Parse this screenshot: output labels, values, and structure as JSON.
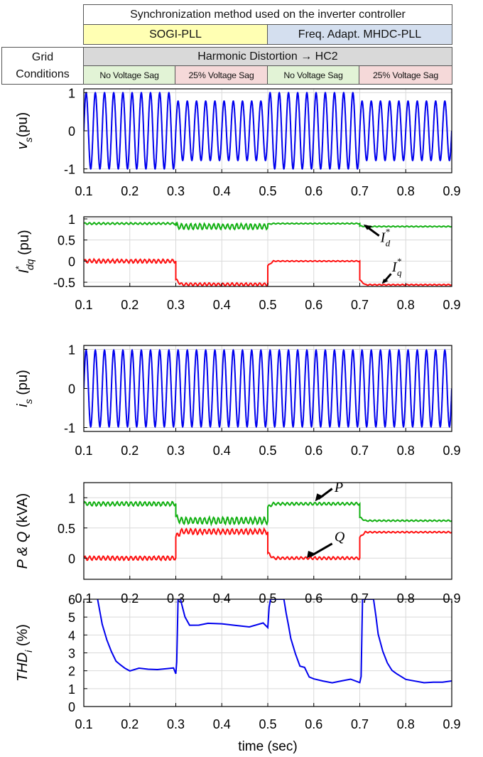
{
  "header": {
    "title": "Synchronization method used on the inverter controller",
    "methods": [
      {
        "label": "SOGI-PLL",
        "color": "#ffffb3"
      },
      {
        "label": "Freq. Adapt. MHDC-PLL",
        "color": "#d4dfef"
      }
    ],
    "grid_label_line1": "Grid",
    "grid_label_line2": "Conditions",
    "distortion_label": "Harmonic Distortion → HC2",
    "distortion_color": "#d9d9d9",
    "conditions": [
      {
        "label": "No Voltage Sag",
        "color": "#e2f3d6"
      },
      {
        "label": "25% Voltage Sag",
        "color": "#f5d9d9"
      },
      {
        "label": "No Voltage Sag",
        "color": "#e2f3d6"
      },
      {
        "label": "25% Voltage Sag",
        "color": "#f5d9d9"
      }
    ]
  },
  "colors": {
    "blue": "#0000ee",
    "green": "#12b012",
    "red": "#ff1010",
    "grid": "#d9d9d9"
  },
  "chart_data": [
    {
      "type": "line",
      "ylabel": "v_s (pu)",
      "xlim": [
        0.1,
        0.9
      ],
      "ylim": [
        -1.1,
        1.1
      ],
      "yticks": [
        "1",
        "0",
        "-1"
      ],
      "ytick_values": [
        1,
        0,
        -1
      ],
      "xticks": [
        "0.1",
        "0.2",
        "0.3",
        "0.4",
        "0.5",
        "0.6",
        "0.7",
        "0.8",
        "0.9"
      ],
      "grid": true,
      "series": [
        {
          "color": "blue",
          "kind": "sine",
          "freq_hz": 50,
          "amplitude_segments": [
            [
              0.1,
              0.3,
              1.0
            ],
            [
              0.3,
              0.5,
              0.78
            ],
            [
              0.5,
              0.7,
              1.0
            ],
            [
              0.7,
              0.9,
              0.78
            ]
          ]
        }
      ]
    },
    {
      "type": "line",
      "ylabel": "I*_dq (pu)",
      "xlim": [
        0.1,
        0.9
      ],
      "ylim": [
        -0.6,
        1.05
      ],
      "yticks": [
        "1",
        "0.5",
        "0",
        "-0.5"
      ],
      "ytick_values": [
        1,
        0.5,
        0,
        -0.5
      ],
      "xticks": [
        "0.1",
        "0.2",
        "0.3",
        "0.4",
        "0.5",
        "0.6",
        "0.7",
        "0.8",
        "0.9"
      ],
      "grid": true,
      "annotations": [
        {
          "text": "I*_d",
          "series": "I_d*"
        },
        {
          "text": "I*_q",
          "series": "I_q*"
        }
      ],
      "series": [
        {
          "name": "I_d*",
          "color": "green",
          "kind": "steps",
          "segments": [
            [
              0.1,
              0.3,
              0.89,
              0.02
            ],
            [
              0.3,
              0.5,
              0.82,
              0.06
            ],
            [
              0.5,
              0.7,
              0.89,
              0.01
            ],
            [
              0.7,
              0.9,
              0.82,
              0.01
            ]
          ]
        },
        {
          "name": "I_q*",
          "color": "red",
          "kind": "steps",
          "segments": [
            [
              0.1,
              0.3,
              0.0,
              0.04
            ],
            [
              0.3,
              0.5,
              -0.55,
              0.03
            ],
            [
              0.5,
              0.7,
              0.0,
              0.01
            ],
            [
              0.7,
              0.9,
              -0.56,
              0.01
            ]
          ]
        }
      ]
    },
    {
      "type": "line",
      "ylabel": "i_s (pu)",
      "xlim": [
        0.1,
        0.9
      ],
      "ylim": [
        -1.1,
        1.1
      ],
      "yticks": [
        "1",
        "0",
        "-1"
      ],
      "ytick_values": [
        1,
        0,
        -1
      ],
      "xticks": [
        "0.1",
        "0.2",
        "0.3",
        "0.4",
        "0.5",
        "0.6",
        "0.7",
        "0.8",
        "0.9"
      ],
      "grid": true,
      "series": [
        {
          "color": "blue",
          "kind": "sine",
          "freq_hz": 50,
          "amplitude_segments": [
            [
              0.1,
              0.3,
              0.98
            ],
            [
              0.3,
              0.5,
              0.98
            ],
            [
              0.5,
              0.7,
              0.98
            ],
            [
              0.7,
              0.9,
              0.98
            ]
          ]
        }
      ]
    },
    {
      "type": "line",
      "ylabel": "P & Q (kVA)",
      "xlim": [
        0.1,
        0.9
      ],
      "ylim": [
        -0.35,
        1.25
      ],
      "yticks": [
        "1",
        "0.5",
        "0"
      ],
      "ytick_values": [
        1,
        0.5,
        0
      ],
      "xticks": [
        "0.1",
        "0.2",
        "0.3",
        "0.4",
        "0.5",
        "0.6",
        "0.7",
        "0.8",
        "0.9"
      ],
      "grid": true,
      "annotations": [
        {
          "text": "P",
          "series": "P"
        },
        {
          "text": "Q",
          "series": "Q"
        }
      ],
      "series": [
        {
          "name": "P",
          "color": "green",
          "kind": "steps",
          "segments": [
            [
              0.1,
              0.3,
              0.9,
              0.03
            ],
            [
              0.3,
              0.5,
              0.62,
              0.05
            ],
            [
              0.5,
              0.7,
              0.9,
              0.02
            ],
            [
              0.7,
              0.9,
              0.62,
              0.01
            ]
          ]
        },
        {
          "name": "Q",
          "color": "red",
          "kind": "steps",
          "segments": [
            [
              0.1,
              0.3,
              0.0,
              0.03
            ],
            [
              0.3,
              0.5,
              0.44,
              0.04
            ],
            [
              0.5,
              0.7,
              0.0,
              0.02
            ],
            [
              0.7,
              0.9,
              0.43,
              0.01
            ]
          ]
        }
      ]
    },
    {
      "type": "line",
      "ylabel": "THD_i (%)",
      "xlabel": "time (sec)",
      "xlim": [
        0.1,
        0.9
      ],
      "ylim": [
        0,
        6
      ],
      "yticks": [
        "6",
        "5",
        "4",
        "3",
        "2",
        "1",
        "0"
      ],
      "ytick_values": [
        6,
        5,
        4,
        3,
        2,
        1,
        0
      ],
      "xticks": [
        "0.1",
        "0.2",
        "0.3",
        "0.4",
        "0.5",
        "0.6",
        "0.7",
        "0.8",
        "0.9"
      ],
      "grid": true,
      "series": [
        {
          "color": "blue",
          "kind": "points",
          "x": [
            0.13,
            0.14,
            0.15,
            0.16,
            0.17,
            0.18,
            0.19,
            0.2,
            0.22,
            0.24,
            0.26,
            0.28,
            0.295,
            0.3,
            0.302,
            0.305,
            0.31,
            0.32,
            0.33,
            0.35,
            0.37,
            0.4,
            0.43,
            0.46,
            0.49,
            0.5,
            0.503,
            0.506,
            0.51,
            0.52,
            0.53,
            0.535,
            0.54,
            0.545,
            0.55,
            0.56,
            0.57,
            0.58,
            0.59,
            0.6,
            0.62,
            0.64,
            0.66,
            0.68,
            0.7,
            0.703,
            0.706,
            0.71,
            0.72,
            0.73,
            0.735,
            0.74,
            0.75,
            0.76,
            0.77,
            0.78,
            0.8,
            0.82,
            0.84,
            0.86,
            0.88,
            0.9
          ],
          "y": [
            6.0,
            4.6,
            3.7,
            3.1,
            2.6,
            2.3,
            2.1,
            2.0,
            2.1,
            2.1,
            2.0,
            2.1,
            2.1,
            1.9,
            2.5,
            6.0,
            6.0,
            5.0,
            4.6,
            4.5,
            4.6,
            4.6,
            4.6,
            4.5,
            4.6,
            4.4,
            5.5,
            6.0,
            6.0,
            6.0,
            6.0,
            6.0,
            5.2,
            4.5,
            3.8,
            2.9,
            2.3,
            2.2,
            1.7,
            1.6,
            1.5,
            1.4,
            1.5,
            1.5,
            1.3,
            1.7,
            6.0,
            6.0,
            6.0,
            6.0,
            5.0,
            4.0,
            3.1,
            2.5,
            2.0,
            1.8,
            1.5,
            1.4,
            1.3,
            1.3,
            1.4,
            1.4
          ]
        }
      ]
    }
  ]
}
